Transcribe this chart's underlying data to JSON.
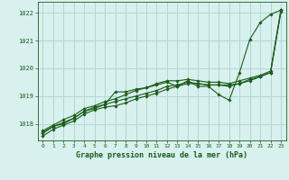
{
  "title": "Graphe pression niveau de la mer (hPa)",
  "background_color": "#d8f0ee",
  "grid_color": "#b0d8d4",
  "line_color": "#1a5c1a",
  "xlim": [
    -0.5,
    23.5
  ],
  "ylim": [
    1017.4,
    1022.4
  ],
  "yticks": [
    1018,
    1019,
    1020,
    1021,
    1022
  ],
  "xticks": [
    0,
    1,
    2,
    3,
    4,
    5,
    6,
    7,
    8,
    9,
    10,
    11,
    12,
    13,
    14,
    15,
    16,
    17,
    18,
    19,
    20,
    21,
    22,
    23
  ],
  "series": [
    [
      1017.65,
      1017.9,
      1018.0,
      1018.2,
      1018.45,
      1018.55,
      1018.7,
      1019.15,
      1019.15,
      1019.25,
      1019.3,
      1019.4,
      1019.5,
      1019.35,
      1019.55,
      1019.35,
      1019.35,
      1019.05,
      1018.85,
      1019.85,
      1021.05,
      1021.65,
      1021.95,
      1022.1
    ],
    [
      1017.75,
      1017.95,
      1018.15,
      1018.3,
      1018.55,
      1018.65,
      1018.8,
      1018.9,
      1019.05,
      1019.2,
      1019.3,
      1019.45,
      1019.55,
      1019.55,
      1019.6,
      1019.55,
      1019.5,
      1019.5,
      1019.45,
      1019.55,
      1019.65,
      1019.75,
      1019.9,
      1022.1
    ],
    [
      1017.7,
      1017.9,
      1018.05,
      1018.2,
      1018.45,
      1018.6,
      1018.7,
      1018.8,
      1018.9,
      1019.0,
      1019.1,
      1019.2,
      1019.35,
      1019.4,
      1019.5,
      1019.45,
      1019.4,
      1019.4,
      1019.35,
      1019.45,
      1019.55,
      1019.7,
      1019.85,
      1022.1
    ],
    [
      1017.55,
      1017.8,
      1017.95,
      1018.1,
      1018.35,
      1018.5,
      1018.6,
      1018.65,
      1018.75,
      1018.9,
      1019.0,
      1019.1,
      1019.25,
      1019.35,
      1019.45,
      1019.45,
      1019.4,
      1019.4,
      1019.4,
      1019.45,
      1019.6,
      1019.7,
      1019.85,
      1022.05
    ]
  ]
}
